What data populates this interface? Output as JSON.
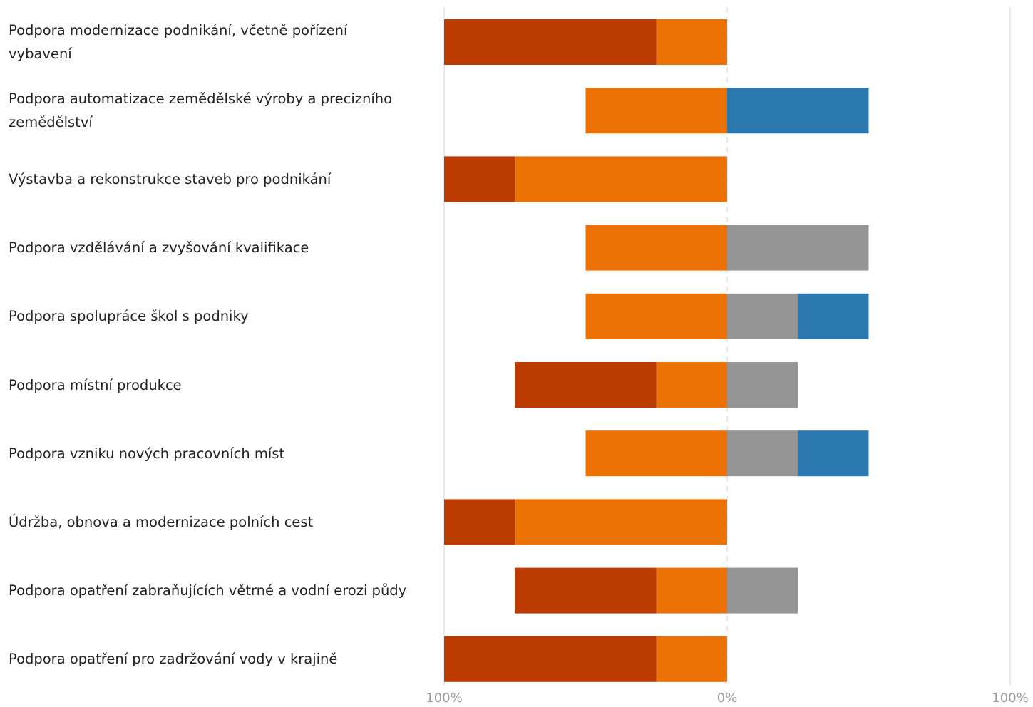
{
  "chart_data": {
    "type": "bar",
    "orientation": "horizontal",
    "stacking": "diverging",
    "categories": [
      "Podpora modernizace podnikání, včetně pořízení vybavení",
      "Podpora automatizace zemědělské výroby a precizního zemědělství",
      "Výstavba a rekonstrukce staveb pro podnikání",
      "Podpora vzdělávání a zvyšování kvalifikace",
      "Podpora spolupráce škol s podniky",
      "Podpora místní produkce",
      "Podpora vzniku nových pracovních míst",
      "Údržba, obnova a modernizace polních cest",
      "Podpora opatření zabraňujících větrné a vodní erozi půdy",
      "Podpora opatření pro zadržování vody v krajině"
    ],
    "series": [
      {
        "side": "negative",
        "color": "#bb3b00",
        "values": [
          75,
          0,
          25,
          0,
          0,
          50,
          0,
          25,
          50,
          75
        ]
      },
      {
        "side": "negative",
        "color": "#ec7105",
        "values": [
          25,
          50,
          75,
          50,
          50,
          25,
          50,
          75,
          25,
          25
        ]
      },
      {
        "side": "positive",
        "color": "#959595",
        "values": [
          0,
          0,
          0,
          50,
          25,
          25,
          25,
          0,
          25,
          0
        ]
      },
      {
        "side": "positive",
        "color": "#2b78b0",
        "values": [
          0,
          50,
          0,
          0,
          25,
          0,
          25,
          0,
          0,
          0
        ]
      }
    ],
    "xlim": [
      -100,
      100
    ],
    "x_ticks": [
      {
        "value": -100,
        "label": "100%"
      },
      {
        "value": 0,
        "label": "0%"
      },
      {
        "value": 100,
        "label": "100%"
      }
    ],
    "grid": true,
    "legend": "none"
  }
}
